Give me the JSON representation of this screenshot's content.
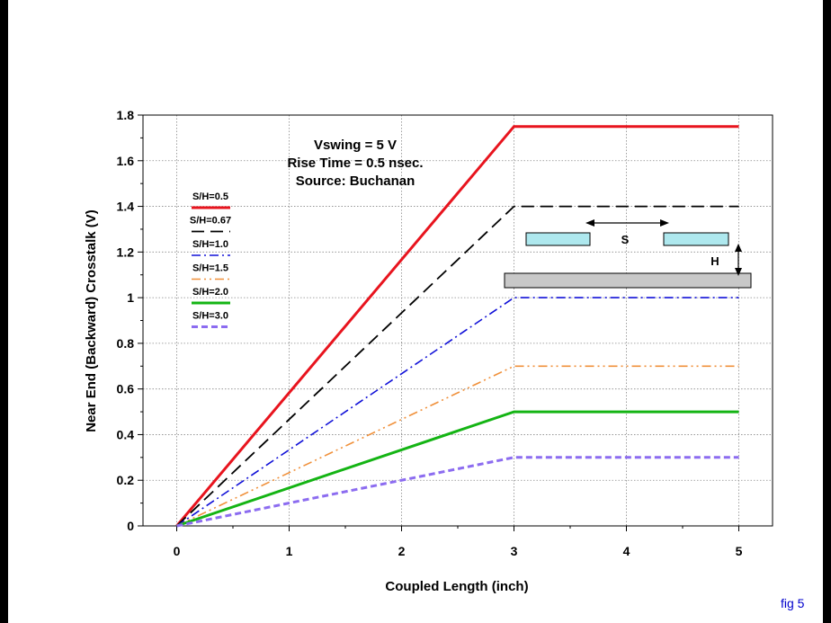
{
  "fig_label": "fig 5",
  "chart_data": {
    "type": "line",
    "title_lines": [
      "Vswing = 5 V",
      "Rise Time = 0.5 nsec.",
      "Source: Buchanan"
    ],
    "xlabel": "Coupled Length (inch)",
    "ylabel": "Near End (Backward) Crosstalk (V)",
    "xlim": [
      -0.3,
      5.3
    ],
    "ylim": [
      0,
      1.8
    ],
    "xticks": [
      0,
      1,
      2,
      3,
      4,
      5
    ],
    "yticks": [
      0,
      0.2,
      0.4,
      0.6,
      0.8,
      1,
      1.2,
      1.4,
      1.6,
      1.8
    ],
    "ytick_labels": [
      "0",
      "0.2",
      "0.4",
      "0.6",
      "0.8",
      "1",
      "1.2",
      "1.4",
      "1.6",
      "1.8"
    ],
    "grid": true,
    "legend_position": "left",
    "x": [
      0,
      3,
      5
    ],
    "series": [
      {
        "name": "S/H=0.5",
        "values": [
          0,
          1.75,
          1.75
        ],
        "color": "#e8141e",
        "style": "solid"
      },
      {
        "name": "S/H=0.67",
        "values": [
          0,
          1.4,
          1.4
        ],
        "color": "#000000",
        "style": "dash"
      },
      {
        "name": "S/H=1.0",
        "values": [
          0,
          1.0,
          1.0
        ],
        "color": "#1010d8",
        "style": "dashdot"
      },
      {
        "name": "S/H=1.5",
        "values": [
          0,
          0.7,
          0.7
        ],
        "color": "#f0903a",
        "style": "dashdotdot"
      },
      {
        "name": "S/H=2.0",
        "values": [
          0,
          0.5,
          0.5
        ],
        "color": "#14b414",
        "style": "solid"
      },
      {
        "name": "S/H=3.0",
        "values": [
          0,
          0.3,
          0.3
        ],
        "color": "#8c6cf0",
        "style": "shortdash"
      }
    ],
    "inset": {
      "spacing_label": "S",
      "height_label": "H"
    }
  }
}
